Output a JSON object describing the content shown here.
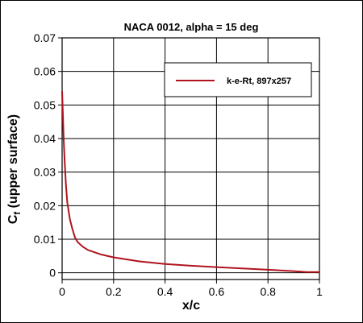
{
  "chart_data": {
    "type": "line",
    "title": "NACA 0012, alpha = 15 deg",
    "xlabel": "x/c",
    "ylabel_main": "C",
    "ylabel_sub": "f",
    "ylabel_rest": " (upper surface)",
    "xlim": [
      0,
      1
    ],
    "ylim": [
      -0.002,
      0.07
    ],
    "xticks": [
      "0",
      "0.2",
      "0.4",
      "0.6",
      "0.8",
      "1"
    ],
    "xtick_values": [
      0,
      0.2,
      0.4,
      0.6,
      0.8,
      1
    ],
    "yticks": [
      "0",
      "0.01",
      "0.02",
      "0.03",
      "0.04",
      "0.05",
      "0.06",
      "0.07"
    ],
    "ytick_values": [
      0,
      0.01,
      0.02,
      0.03,
      0.04,
      0.05,
      0.06,
      0.07
    ],
    "grid": true,
    "legend_position": "top-right",
    "series": [
      {
        "name": "k-e-Rt, 897x257",
        "color": "#b0141e",
        "x": [
          0.0,
          0.003,
          0.006,
          0.01,
          0.015,
          0.02,
          0.03,
          0.04,
          0.05,
          0.06,
          0.07,
          0.08,
          0.1,
          0.15,
          0.2,
          0.3,
          0.4,
          0.5,
          0.6,
          0.7,
          0.8,
          0.9,
          0.95,
          1.0
        ],
        "y": [
          0.054,
          0.047,
          0.04,
          0.033,
          0.026,
          0.021,
          0.016,
          0.013,
          0.0105,
          0.0092,
          0.0085,
          0.0078,
          0.0068,
          0.0055,
          0.0046,
          0.0034,
          0.0026,
          0.0021,
          0.0017,
          0.0013,
          0.0009,
          0.0005,
          0.0002,
          0.0002
        ]
      }
    ]
  }
}
